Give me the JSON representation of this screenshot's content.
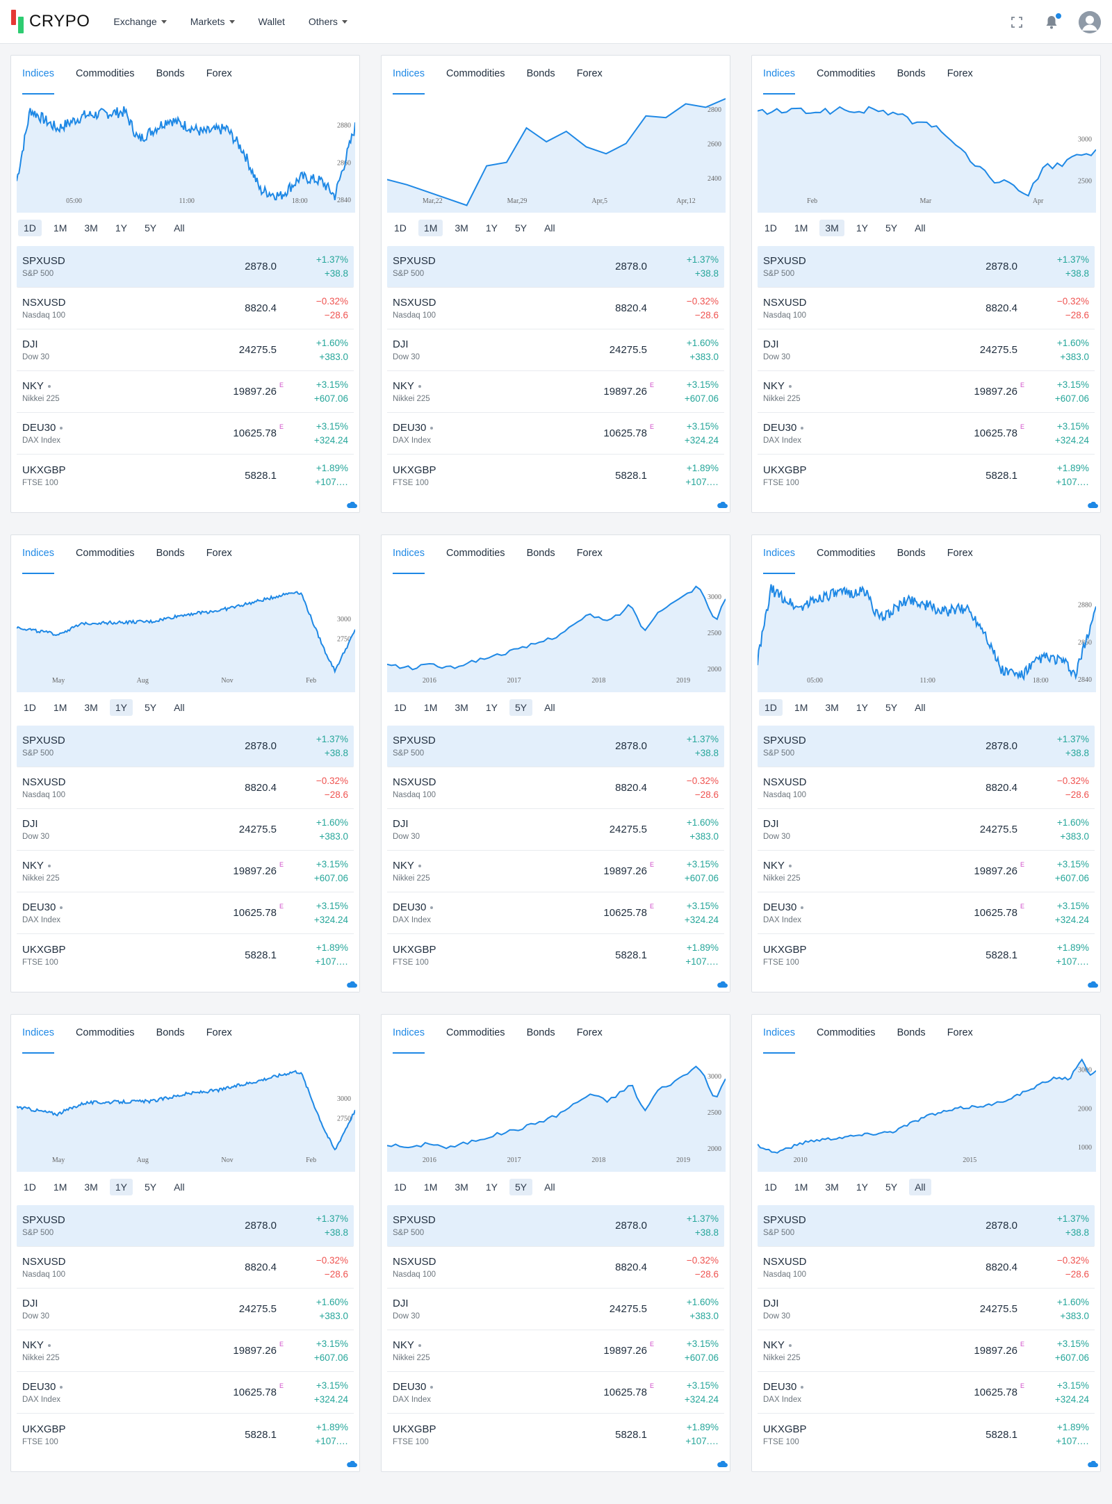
{
  "brand": {
    "name": "CRYPO",
    "accent": "#1e88e5",
    "logo_red": "#e53935",
    "logo_green": "#2ecc71"
  },
  "nav": [
    {
      "label": "Exchange",
      "dropdown": true
    },
    {
      "label": "Markets",
      "dropdown": true
    },
    {
      "label": "Wallet",
      "dropdown": false
    },
    {
      "label": "Others",
      "dropdown": true
    }
  ],
  "toolbar_icons": [
    "fullscreen-icon",
    "bell-icon",
    "avatar"
  ],
  "tabs": [
    "Indices",
    "Commodities",
    "Bonds",
    "Forex"
  ],
  "ranges": [
    "1D",
    "1M",
    "3M",
    "1Y",
    "5Y",
    "All"
  ],
  "quotes": [
    {
      "symbol": "SPXUSD",
      "name": "S&P 500",
      "price": "2878.0",
      "pct": "+1.37%",
      "abs": "+38.8",
      "dir": "up",
      "dot": false,
      "e": false
    },
    {
      "symbol": "NSXUSD",
      "name": "Nasdaq 100",
      "price": "8820.4",
      "pct": "−0.32%",
      "abs": "−28.6",
      "dir": "down",
      "dot": false,
      "e": false
    },
    {
      "symbol": "DJI",
      "name": "Dow 30",
      "price": "24275.5",
      "pct": "+1.60%",
      "abs": "+383.0",
      "dir": "up",
      "dot": false,
      "e": false
    },
    {
      "symbol": "NKY",
      "name": "Nikkei 225",
      "price": "19897.26",
      "pct": "+3.15%",
      "abs": "+607.06",
      "dir": "up",
      "dot": true,
      "e": true
    },
    {
      "symbol": "DEU30",
      "name": "DAX Index",
      "price": "10625.78",
      "pct": "+3.15%",
      "abs": "+324.24",
      "dir": "up",
      "dot": true,
      "e": true
    },
    {
      "symbol": "UKXGBP",
      "name": "FTSE 100",
      "price": "5828.1",
      "pct": "+1.89%",
      "abs": "+107.…",
      "dir": "up",
      "dot": false,
      "e": false
    }
  ],
  "cards": [
    {
      "active_range": "1D",
      "chart_data": {
        "type": "area",
        "kind": "intraday",
        "x_ticks": [
          "05:00",
          "11:00",
          "18:00"
        ],
        "y_ticks": [
          "2880",
          "2860",
          "2840"
        ],
        "ylim": [
          2836,
          2894
        ]
      }
    },
    {
      "active_range": "1M",
      "chart_data": {
        "type": "area",
        "kind": "month",
        "x_ticks": [
          "Mar,22",
          "Mar,29",
          "Apr,5",
          "Apr,12"
        ],
        "y_ticks": [
          "2800",
          "2600",
          "2400"
        ],
        "ylim": [
          2230,
          2860
        ],
        "values": [
          2390,
          2360,
          2320,
          2280,
          2240,
          2470,
          2490,
          2690,
          2610,
          2670,
          2580,
          2540,
          2600,
          2760,
          2750,
          2830,
          2810,
          2860
        ]
      }
    },
    {
      "active_range": "3M",
      "chart_data": {
        "type": "area",
        "kind": "quarter",
        "x_ticks": [
          "Feb",
          "Mar",
          "Apr"
        ],
        "y_ticks": [
          "3000",
          "2500"
        ],
        "ylim": [
          2180,
          3480
        ]
      }
    },
    {
      "active_range": "1Y",
      "chart_data": {
        "type": "area",
        "kind": "year",
        "x_ticks": [
          "May",
          "Aug",
          "Nov",
          "Feb"
        ],
        "y_ticks": [
          "3000",
          "2750"
        ],
        "ylim": [
          2150,
          3500
        ]
      }
    },
    {
      "active_range": "5Y",
      "chart_data": {
        "type": "area",
        "kind": "fiveyear",
        "x_ticks": [
          "2016",
          "2017",
          "2018",
          "2019"
        ],
        "y_ticks": [
          "3000",
          "2500",
          "2000"
        ],
        "ylim": [
          1750,
          3250
        ]
      }
    },
    {
      "active_range": "1D",
      "chart_data": {
        "type": "area",
        "kind": "intraday",
        "x_ticks": [
          "05:00",
          "11:00",
          "18:00"
        ],
        "y_ticks": [
          "2880",
          "2860",
          "2840"
        ],
        "ylim": [
          2836,
          2894
        ]
      }
    },
    {
      "active_range": "1Y",
      "chart_data": {
        "type": "area",
        "kind": "year",
        "x_ticks": [
          "May",
          "Aug",
          "Nov",
          "Feb"
        ],
        "y_ticks": [
          "3000",
          "2750"
        ],
        "ylim": [
          2150,
          3500
        ]
      }
    },
    {
      "active_range": "5Y",
      "chart_data": {
        "type": "area",
        "kind": "fiveyear",
        "x_ticks": [
          "2016",
          "2017",
          "2018",
          "2019"
        ],
        "y_ticks": [
          "3000",
          "2500",
          "2000"
        ],
        "ylim": [
          1750,
          3250
        ]
      }
    },
    {
      "active_range": "All",
      "chart_data": {
        "type": "area",
        "kind": "all",
        "x_ticks": [
          "2010",
          "2015"
        ],
        "y_ticks": [
          "3000",
          "2000",
          "1000"
        ],
        "ylim": [
          500,
          3300
        ]
      }
    }
  ]
}
